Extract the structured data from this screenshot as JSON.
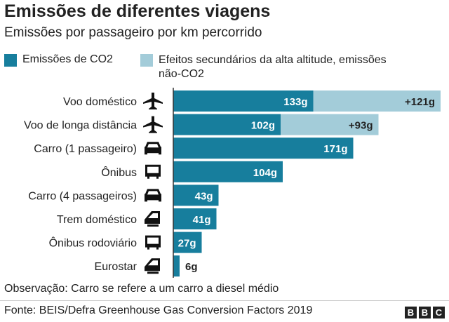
{
  "title": "Emissões de diferentes viagens",
  "subtitle": "Emissões por passageiro por km percorrido",
  "chart_data": {
    "type": "bar",
    "orientation": "horizontal",
    "stacked": true,
    "categories": [
      "Voo doméstico",
      "Voo de longa distância",
      "Carro (1 passageiro)",
      "Ônibus",
      "Carro (4 passageiros)",
      "Trem doméstico",
      "Ônibus rodoviário",
      "Eurostar"
    ],
    "icons": [
      "plane-icon",
      "plane-icon",
      "car-icon",
      "bus-icon",
      "car-icon",
      "train-icon",
      "bus-icon",
      "train-icon"
    ],
    "series": [
      {
        "name": "Emissões de CO2",
        "values": [
          133,
          102,
          171,
          104,
          43,
          41,
          27,
          6
        ],
        "labels": [
          "133g",
          "102g",
          "171g",
          "104g",
          "43g",
          "41g",
          "27g",
          "6g"
        ],
        "color": "#177e9d"
      },
      {
        "name": "Efeitos secundários da alta altitude, emissões não-CO2",
        "values": [
          121,
          93,
          null,
          null,
          null,
          null,
          null,
          null
        ],
        "labels": [
          "+121g",
          "+93g",
          "",
          "",
          "",
          "",
          "",
          ""
        ],
        "color": "#a3ccd9"
      }
    ],
    "legend_lines": [
      "Efeitos secundários da alta altitude, emissões",
      "não-CO2"
    ],
    "legend": "top"
  },
  "note": "Observação: Carro se refere a um carro a diesel médio",
  "source": "Fonte: BEIS/Defra Greenhouse Gas Conversion Factors 2019",
  "logo": [
    "B",
    "B",
    "C"
  ]
}
